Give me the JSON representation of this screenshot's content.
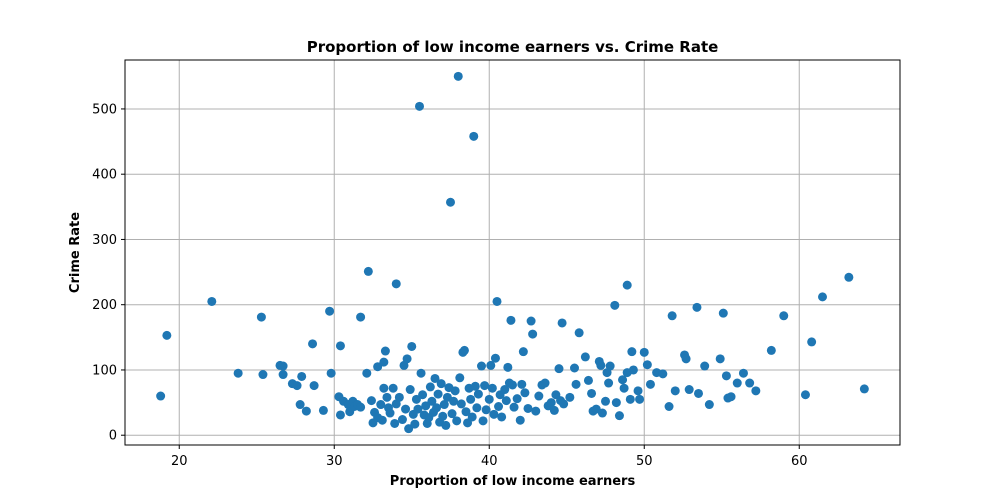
{
  "chart_data": {
    "type": "scatter",
    "title": "Proportion of low income earners vs. Crime Rate",
    "xlabel": "Proportion of low income earners",
    "ylabel": "Crime Rate",
    "xlim": [
      16.5,
      66.5
    ],
    "ylim": [
      -15,
      575
    ],
    "xticks": [
      20,
      30,
      40,
      50,
      60
    ],
    "yticks": [
      0,
      100,
      200,
      300,
      400,
      500
    ],
    "grid": true,
    "marker_color": "#1f77b4",
    "points": [
      [
        18.8,
        60
      ],
      [
        19.2,
        153
      ],
      [
        22.1,
        205
      ],
      [
        23.8,
        95
      ],
      [
        25.3,
        181
      ],
      [
        25.4,
        93
      ],
      [
        26.5,
        107
      ],
      [
        26.7,
        106
      ],
      [
        26.7,
        93
      ],
      [
        27.3,
        79
      ],
      [
        27.6,
        76
      ],
      [
        27.8,
        47
      ],
      [
        27.9,
        90
      ],
      [
        28.2,
        37
      ],
      [
        28.6,
        140
      ],
      [
        28.7,
        76
      ],
      [
        29.3,
        38
      ],
      [
        29.7,
        190
      ],
      [
        29.8,
        95
      ],
      [
        30.3,
        59
      ],
      [
        30.4,
        137
      ],
      [
        30.4,
        31
      ],
      [
        30.6,
        52
      ],
      [
        30.9,
        47
      ],
      [
        31.0,
        36
      ],
      [
        31.2,
        52
      ],
      [
        31.3,
        44
      ],
      [
        31.5,
        47
      ],
      [
        31.7,
        43
      ],
      [
        31.7,
        181
      ],
      [
        32.1,
        95
      ],
      [
        32.2,
        251
      ],
      [
        32.4,
        53
      ],
      [
        32.5,
        19
      ],
      [
        32.6,
        35
      ],
      [
        32.8,
        105
      ],
      [
        32.8,
        27
      ],
      [
        33.0,
        47
      ],
      [
        33.1,
        23
      ],
      [
        33.2,
        112
      ],
      [
        33.2,
        72
      ],
      [
        33.3,
        129
      ],
      [
        33.4,
        58
      ],
      [
        33.5,
        42
      ],
      [
        33.6,
        34
      ],
      [
        33.8,
        72
      ],
      [
        33.9,
        18
      ],
      [
        34.0,
        232
      ],
      [
        34.0,
        48
      ],
      [
        34.2,
        58
      ],
      [
        34.4,
        24
      ],
      [
        34.5,
        107
      ],
      [
        34.6,
        40
      ],
      [
        34.7,
        117
      ],
      [
        34.8,
        10
      ],
      [
        34.9,
        70
      ],
      [
        35.0,
        136
      ],
      [
        35.1,
        32
      ],
      [
        35.2,
        17
      ],
      [
        35.3,
        55
      ],
      [
        35.4,
        40
      ],
      [
        35.5,
        504
      ],
      [
        35.6,
        95
      ],
      [
        35.7,
        62
      ],
      [
        35.8,
        31
      ],
      [
        35.9,
        45
      ],
      [
        36.0,
        18
      ],
      [
        36.1,
        27
      ],
      [
        36.2,
        74
      ],
      [
        36.3,
        52
      ],
      [
        36.4,
        35
      ],
      [
        36.5,
        87
      ],
      [
        36.6,
        42
      ],
      [
        36.7,
        63
      ],
      [
        36.8,
        20
      ],
      [
        36.9,
        79
      ],
      [
        37.0,
        29
      ],
      [
        37.1,
        47
      ],
      [
        37.2,
        15
      ],
      [
        37.3,
        58
      ],
      [
        37.4,
        73
      ],
      [
        37.5,
        357
      ],
      [
        37.6,
        33
      ],
      [
        37.7,
        52
      ],
      [
        37.8,
        68
      ],
      [
        37.9,
        22
      ],
      [
        38.0,
        550
      ],
      [
        38.1,
        88
      ],
      [
        38.2,
        48
      ],
      [
        38.3,
        127
      ],
      [
        38.4,
        130
      ],
      [
        38.5,
        36
      ],
      [
        38.6,
        19
      ],
      [
        38.7,
        72
      ],
      [
        38.8,
        55
      ],
      [
        38.9,
        28
      ],
      [
        39.0,
        458
      ],
      [
        39.1,
        75
      ],
      [
        39.2,
        42
      ],
      [
        39.3,
        63
      ],
      [
        39.5,
        106
      ],
      [
        39.6,
        22
      ],
      [
        39.7,
        76
      ],
      [
        39.8,
        39
      ],
      [
        40.0,
        55
      ],
      [
        40.1,
        107
      ],
      [
        40.2,
        72
      ],
      [
        40.3,
        32
      ],
      [
        40.4,
        118
      ],
      [
        40.5,
        205
      ],
      [
        40.6,
        44
      ],
      [
        40.7,
        62
      ],
      [
        40.8,
        28
      ],
      [
        41.0,
        70
      ],
      [
        41.1,
        53
      ],
      [
        41.2,
        104
      ],
      [
        41.3,
        80
      ],
      [
        41.4,
        176
      ],
      [
        41.5,
        77
      ],
      [
        41.6,
        43
      ],
      [
        41.8,
        56
      ],
      [
        42.0,
        23
      ],
      [
        42.1,
        78
      ],
      [
        42.2,
        128
      ],
      [
        42.3,
        65
      ],
      [
        42.5,
        41
      ],
      [
        42.7,
        175
      ],
      [
        42.8,
        155
      ],
      [
        43.0,
        37
      ],
      [
        43.2,
        60
      ],
      [
        43.4,
        77
      ],
      [
        43.6,
        80
      ],
      [
        43.8,
        45
      ],
      [
        44.0,
        50
      ],
      [
        44.2,
        38
      ],
      [
        44.3,
        62
      ],
      [
        44.5,
        102
      ],
      [
        44.6,
        53
      ],
      [
        44.7,
        172
      ],
      [
        44.8,
        48
      ],
      [
        45.2,
        58
      ],
      [
        45.5,
        103
      ],
      [
        45.6,
        78
      ],
      [
        45.8,
        157
      ],
      [
        46.2,
        120
      ],
      [
        46.4,
        84
      ],
      [
        46.6,
        64
      ],
      [
        46.7,
        37
      ],
      [
        46.9,
        40
      ],
      [
        47.1,
        113
      ],
      [
        47.2,
        107
      ],
      [
        47.3,
        34
      ],
      [
        47.5,
        52
      ],
      [
        47.6,
        96
      ],
      [
        47.7,
        80
      ],
      [
        47.8,
        106
      ],
      [
        48.1,
        199
      ],
      [
        48.2,
        50
      ],
      [
        48.4,
        30
      ],
      [
        48.6,
        85
      ],
      [
        48.7,
        72
      ],
      [
        48.9,
        230
      ],
      [
        48.9,
        96
      ],
      [
        49.1,
        55
      ],
      [
        49.2,
        128
      ],
      [
        49.3,
        100
      ],
      [
        49.6,
        68
      ],
      [
        49.7,
        55
      ],
      [
        50.0,
        127
      ],
      [
        50.2,
        108
      ],
      [
        50.4,
        78
      ],
      [
        50.8,
        96
      ],
      [
        51.2,
        94
      ],
      [
        51.6,
        44
      ],
      [
        51.8,
        183
      ],
      [
        52.0,
        68
      ],
      [
        52.6,
        123
      ],
      [
        52.7,
        117
      ],
      [
        52.9,
        70
      ],
      [
        53.4,
        196
      ],
      [
        53.5,
        64
      ],
      [
        53.9,
        106
      ],
      [
        54.2,
        47
      ],
      [
        54.9,
        117
      ],
      [
        55.1,
        187
      ],
      [
        55.3,
        91
      ],
      [
        55.4,
        57
      ],
      [
        55.6,
        59
      ],
      [
        56.0,
        80
      ],
      [
        56.4,
        95
      ],
      [
        56.8,
        80
      ],
      [
        57.2,
        68
      ],
      [
        58.2,
        130
      ],
      [
        59.0,
        183
      ],
      [
        60.4,
        62
      ],
      [
        60.8,
        143
      ],
      [
        61.5,
        212
      ],
      [
        63.2,
        242
      ],
      [
        64.2,
        71
      ]
    ]
  }
}
